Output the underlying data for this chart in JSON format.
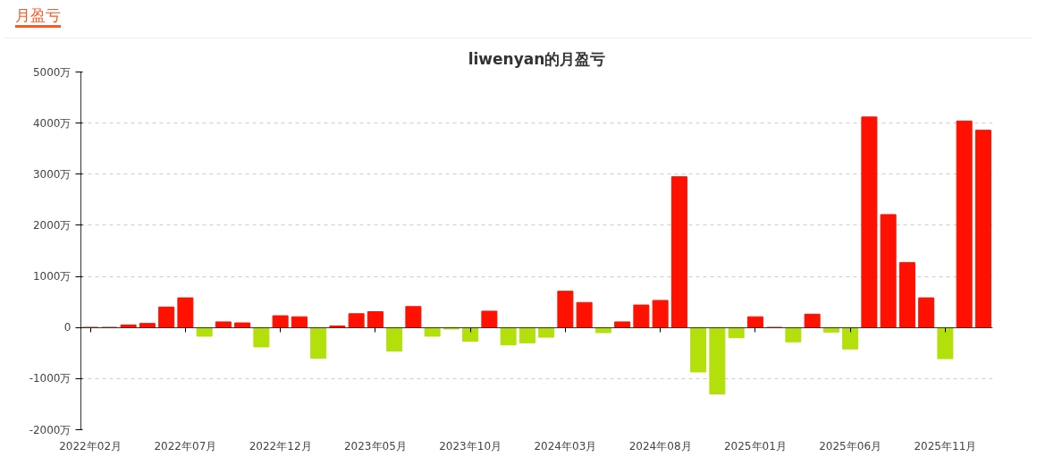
{
  "chart_data": {
    "type": "bar",
    "title": "liwenyan的月盈亏",
    "annotations": [
      "月盈亏"
    ],
    "categories": [
      "2022年02月",
      null,
      null,
      null,
      null,
      "2022年07月",
      null,
      null,
      null,
      null,
      "2022年12月",
      null,
      null,
      null,
      null,
      "2023年05月",
      null,
      null,
      null,
      null,
      "2023年10月",
      null,
      null,
      null,
      null,
      "2024年03月",
      null,
      null,
      null,
      null,
      "2024年08月",
      null,
      null,
      null,
      null,
      "2025年01月",
      null,
      null,
      null,
      null,
      "2025年06月",
      null,
      null,
      null,
      null,
      "2025年11月",
      null,
      null
    ],
    "values": [
      0,
      0,
      50,
      80,
      400,
      580,
      -170,
      110,
      90,
      -380,
      230,
      210,
      -600,
      30,
      270,
      310,
      -460,
      410,
      -170,
      -30,
      -270,
      320,
      -340,
      -300,
      -190,
      710,
      490,
      -100,
      110,
      440,
      530,
      2950,
      -870,
      -1300,
      -200,
      210,
      0,
      -280,
      260,
      -90,
      -420,
      4120,
      2210,
      1270,
      580,
      -610,
      4040,
      3860
    ],
    "colors": [
      "#ff1100",
      "#ff1100",
      "#ff1100",
      "#ff1100",
      "#ff1100",
      "#ff1100",
      "#b3e00b",
      "#ff1100",
      "#ff1100",
      "#b3e00b",
      "#ff1100",
      "#ff1100",
      "#b3e00b",
      "#ff1100",
      "#ff1100",
      "#ff1100",
      "#b3e00b",
      "#ff1100",
      "#b3e00b",
      "#b3e00b",
      "#b3e00b",
      "#ff1100",
      "#b3e00b",
      "#b3e00b",
      "#b3e00b",
      "#ff1100",
      "#ff1100",
      "#b3e00b",
      "#ff1100",
      "#ff1100",
      "#ff1100",
      "#ff1100",
      "#b3e00b",
      "#b3e00b",
      "#b3e00b",
      "#ff1100",
      "#ff1100",
      "#b3e00b",
      "#ff1100",
      "#b3e00b",
      "#b3e00b",
      "#ff1100",
      "#ff1100",
      "#ff1100",
      "#ff1100",
      "#b3e00b",
      "#ff1100",
      "#ff1100"
    ],
    "ylim": [
      -2000,
      5000
    ],
    "yticks": [
      {
        "value": -2000,
        "label": "-2000万"
      },
      {
        "value": -1000,
        "label": "-1000万"
      },
      {
        "value": 0,
        "label": "0"
      },
      {
        "value": 1000,
        "label": "1000万"
      },
      {
        "value": 2000,
        "label": "2000万"
      },
      {
        "value": 3000,
        "label": "3000万"
      },
      {
        "value": 4000,
        "label": "4000万"
      },
      {
        "value": 5000,
        "label": "5000万"
      }
    ],
    "grid": "y"
  }
}
